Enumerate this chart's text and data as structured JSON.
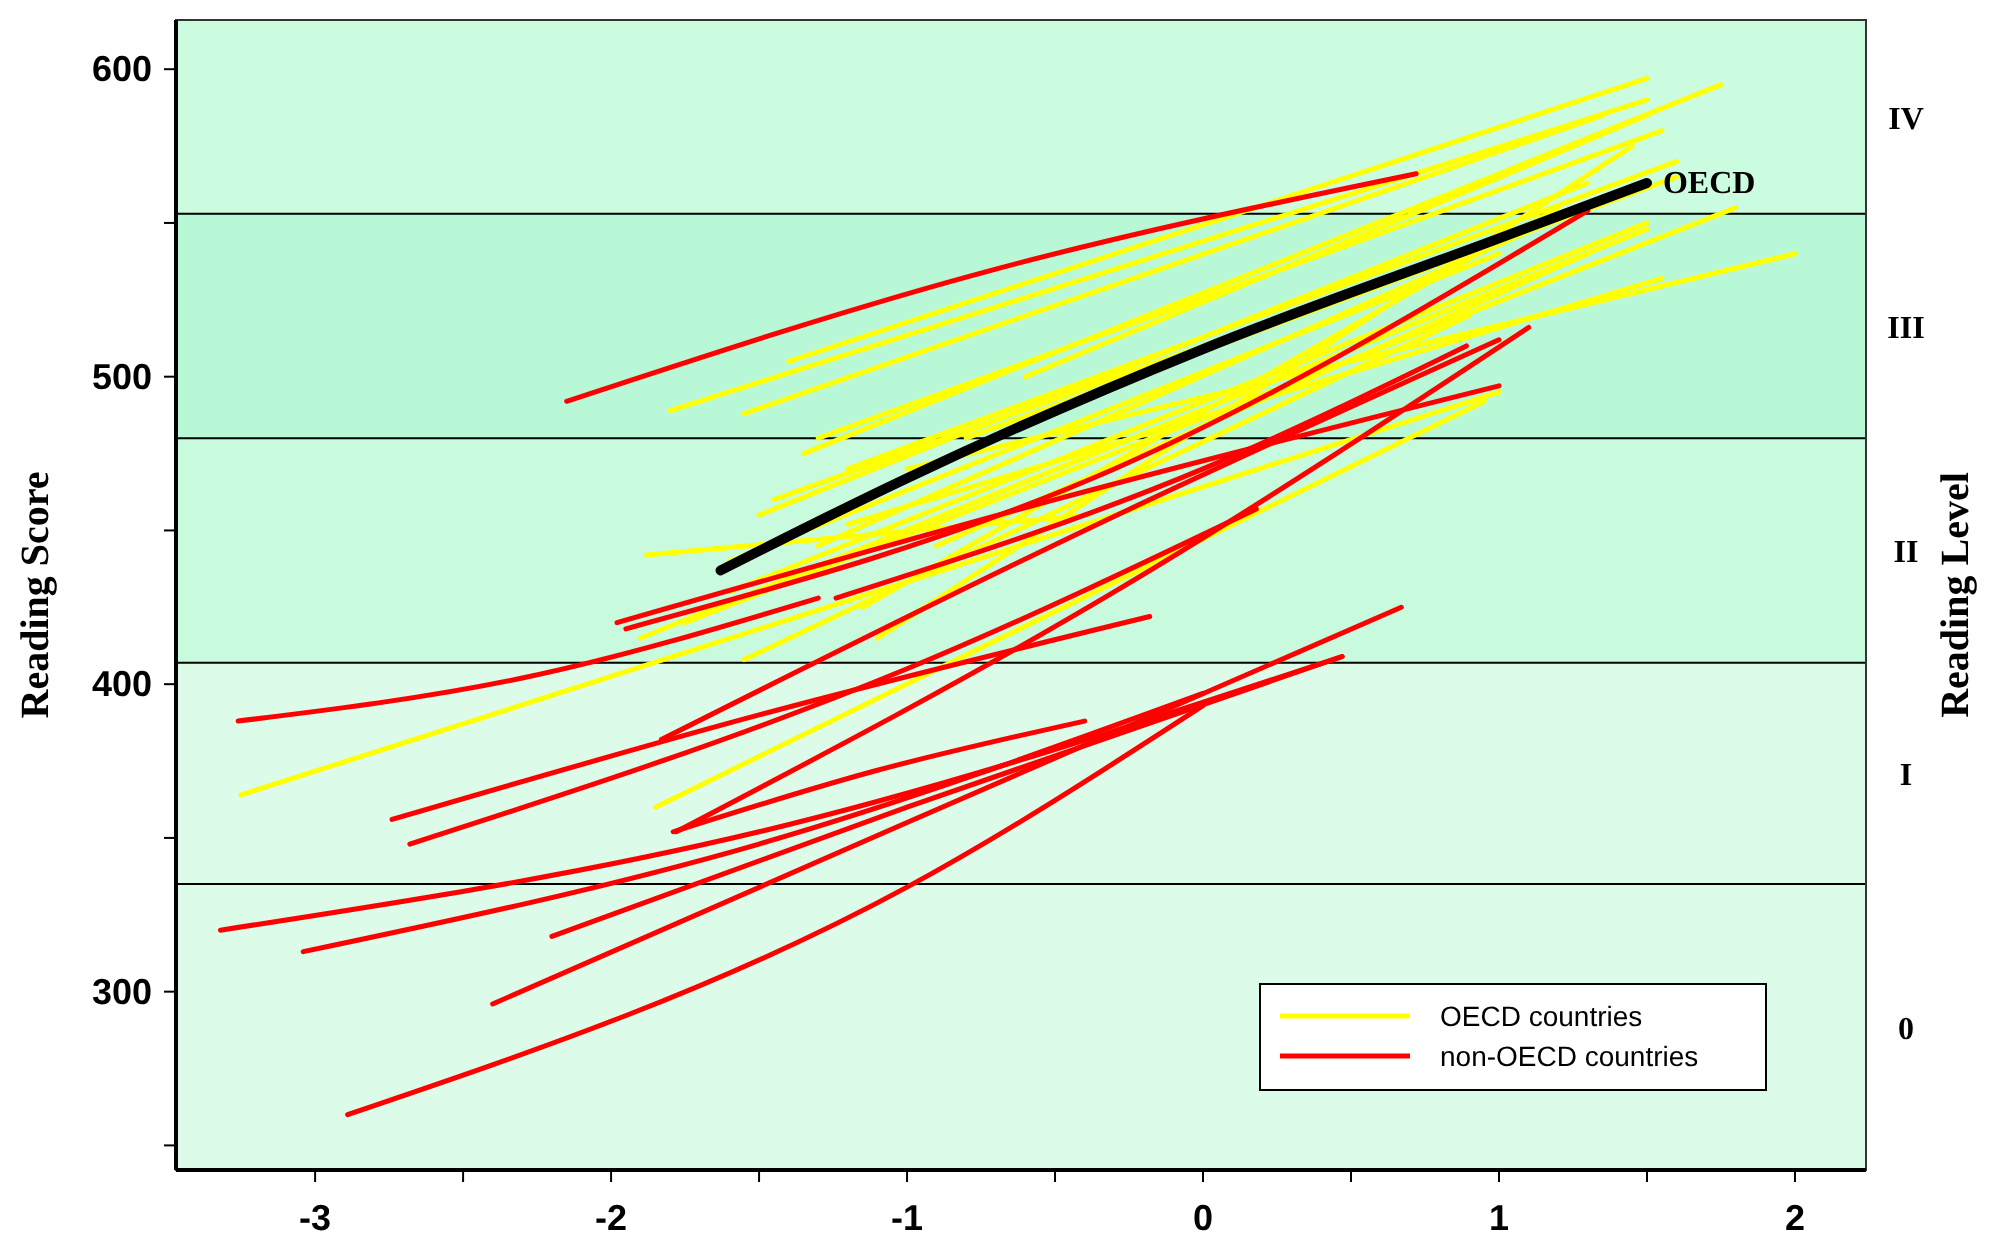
{
  "chart_data": {
    "type": "line",
    "ylabel": "Reading Score",
    "y2label": "Reading Level",
    "xlim": [
      -3.47,
      2.24
    ],
    "ylim": [
      242,
      616
    ],
    "xticks": [
      -3,
      {
        "value": -2.5,
        "label": null
      },
      -2,
      {
        "value": -1.5,
        "label": null
      },
      -1,
      {
        "value": -0.5,
        "label": null
      },
      0,
      {
        "value": 0.5,
        "label": null
      },
      1,
      {
        "value": 1.5,
        "label": null
      },
      2
    ],
    "yticks": [
      {
        "value": 250,
        "label": null
      },
      300,
      {
        "value": 350,
        "label": null
      },
      400,
      {
        "value": 450,
        "label": null
      },
      500,
      {
        "value": 550,
        "label": null
      },
      600
    ],
    "grid": false,
    "legend": "bottom right",
    "marker": "none",
    "line_style": "solid",
    "bands": [
      {
        "axis": "y",
        "from": 242,
        "to": 335,
        "label": "0",
        "color": "#ddfbe9"
      },
      {
        "axis": "y",
        "from": 335,
        "to": 407,
        "label": "I",
        "color": "#ddfbe9"
      },
      {
        "axis": "y",
        "from": 407,
        "to": 480,
        "label": "II",
        "color": "#c8fbdd"
      },
      {
        "axis": "y",
        "from": 480,
        "to": 553,
        "label": "III",
        "color": "#b9f8d6"
      },
      {
        "axis": "y",
        "from": 553,
        "to": 616,
        "label": "IV",
        "color": "#ccfce0"
      }
    ],
    "series": [
      {
        "name": "OECD countries",
        "color": "#ffff00",
        "x": [
          -3.25,
          1.0
        ],
        "values": [
          364,
          495
        ]
      },
      {
        "color": "#ffff00",
        "x": [
          -1.85,
          0.95
        ],
        "values": [
          360,
          492
        ]
      },
      {
        "color": "#ffff00",
        "x": [
          -1.88,
          -0.39
        ],
        "values": [
          442,
          455
        ]
      },
      {
        "color": "#ffff00",
        "x": [
          -1.8,
          1.5
        ],
        "values": [
          489,
          590
        ]
      },
      {
        "color": "#ffff00",
        "x": [
          -1.55,
          1.35
        ],
        "values": [
          488,
          585
        ]
      },
      {
        "color": "#ffff00",
        "x": [
          -1.4,
          1.5
        ],
        "values": [
          505,
          597
        ]
      },
      {
        "color": "#ffff00",
        "x": [
          -1.35,
          1.75
        ],
        "values": [
          475,
          595
        ]
      },
      {
        "color": "#ffff00",
        "x": [
          -1.3,
          1.55
        ],
        "values": [
          480,
          580
        ]
      },
      {
        "color": "#ffff00",
        "x": [
          -1.5,
          1.3
        ],
        "values": [
          455,
          563
        ]
      },
      {
        "color": "#ffff00",
        "x": [
          -1.2,
          1.6
        ],
        "values": [
          470,
          570
        ]
      },
      {
        "color": "#ffff00",
        "x": [
          -1.6,
          1.5
        ],
        "values": [
          430,
          550
        ]
      },
      {
        "color": "#ffff00",
        "x": [
          -1.75,
          1.8
        ],
        "values": [
          420,
          555
        ]
      },
      {
        "color": "#ffff00",
        "x": [
          -1.9,
          1.5
        ],
        "values": [
          415,
          548
        ]
      },
      {
        "color": "#ffff00",
        "x": [
          -1.0,
          2.0
        ],
        "values": [
          470,
          540
        ]
      },
      {
        "color": "#ffff00",
        "x": [
          -1.2,
          1.55
        ],
        "values": [
          452,
          532
        ]
      },
      {
        "color": "#ffff00",
        "x": [
          -1.55,
          0.9
        ],
        "values": [
          408,
          520
        ]
      },
      {
        "color": "#ffff00",
        "x": [
          -1.15,
          1.2
        ],
        "values": [
          425,
          555
        ]
      },
      {
        "color": "#ffff00",
        "x": [
          -0.8,
          1.6
        ],
        "values": [
          480,
          565
        ]
      },
      {
        "color": "#ffff00",
        "x": [
          -1.6,
          1.0
        ],
        "values": [
          440,
          540
        ]
      },
      {
        "color": "#ffff00",
        "x": [
          -1.3,
          1.4
        ],
        "values": [
          445,
          560
        ]
      },
      {
        "color": "#ffff00",
        "x": [
          -1.1,
          1.45
        ],
        "values": [
          415,
          575
        ]
      },
      {
        "color": "#ffff00",
        "x": [
          -0.6,
          1.5
        ],
        "values": [
          500,
          585
        ]
      },
      {
        "color": "#ffff00",
        "x": [
          -1.45,
          1.1
        ],
        "values": [
          460,
          548
        ]
      },
      {
        "color": "#ffff00",
        "x": [
          -0.9,
          1.3
        ],
        "values": [
          445,
          540
        ]
      },
      {
        "name": "non-OECD countries",
        "color": "#ff0000",
        "x": [
          -2.15,
          -0.7,
          0.72
        ],
        "values": [
          492,
          535,
          566
        ]
      },
      {
        "color": "#ff0000",
        "x": [
          -3.26,
          -2.3,
          -1.3
        ],
        "values": [
          388,
          402,
          428
        ]
      },
      {
        "color": "#ff0000",
        "x": [
          -3.32,
          -1.5,
          0.47
        ],
        "values": [
          320,
          352,
          409
        ]
      },
      {
        "color": "#ff0000",
        "x": [
          -3.04,
          -1.5,
          0
        ],
        "values": [
          313,
          348,
          397
        ]
      },
      {
        "color": "#ff0000",
        "x": [
          -2.89,
          -1,
          0
        ],
        "values": [
          260,
          334,
          393
        ]
      },
      {
        "color": "#ff0000",
        "x": [
          -2.4,
          -1,
          0.67
        ],
        "values": [
          296,
          355,
          425
        ]
      },
      {
        "color": "#ff0000",
        "x": [
          -2.2,
          -1,
          0.47
        ],
        "values": [
          318,
          360,
          409
        ]
      },
      {
        "color": "#ff0000",
        "x": [
          -2.74,
          -1.5,
          -0.18
        ],
        "values": [
          356,
          390,
          422
        ]
      },
      {
        "color": "#ff0000",
        "x": [
          -2.68,
          -1,
          0.18
        ],
        "values": [
          348,
          405,
          457
        ]
      },
      {
        "color": "#ff0000",
        "x": [
          -1.79,
          -1.1,
          -0.4
        ],
        "values": [
          352,
          372,
          388
        ]
      },
      {
        "color": "#ff0000",
        "x": [
          -1.83,
          -0.4,
          1.0
        ],
        "values": [
          382,
          450,
          512
        ]
      },
      {
        "color": "#ff0000",
        "x": [
          -1.98,
          -0.5,
          1.0
        ],
        "values": [
          420,
          460,
          497
        ]
      },
      {
        "color": "#ff0000",
        "x": [
          -1.78,
          -0.3,
          1.1
        ],
        "values": [
          352,
          430,
          516
        ]
      },
      {
        "color": "#ff0000",
        "x": [
          -1.24,
          0,
          0.89
        ],
        "values": [
          428,
          470,
          510
        ]
      },
      {
        "color": "#ff0000",
        "x": [
          -1.95,
          -0.3,
          1.3
        ],
        "values": [
          418,
          470,
          554
        ]
      },
      {
        "name": "OECD",
        "color": "#000000",
        "x": [
          -1.63,
          -1,
          0,
          1,
          1.5
        ],
        "values": [
          437,
          467,
          509,
          545,
          563
        ]
      }
    ]
  }
}
